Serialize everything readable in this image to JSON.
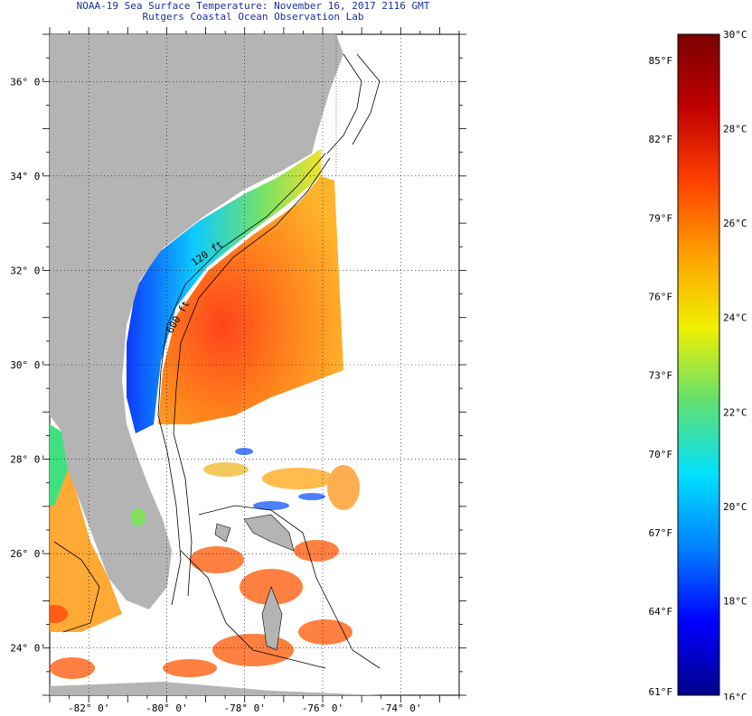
{
  "header": {
    "title": "NOAA-19 Sea Surface Temperature:  November 16, 2017 2116 GMT",
    "subtitle": "Rutgers Coastal Ocean Observation Lab"
  },
  "map": {
    "lat_labels": [
      "36° 0'",
      "34° 0'",
      "32° 0'",
      "30° 0'",
      "28° 0'",
      "26° 0'",
      "24° 0'"
    ],
    "lon_labels": [
      "-82° 0'",
      "-80° 0'",
      "-78° 0'",
      "-76° 0'",
      "-74° 0'"
    ],
    "lat_values": [
      36,
      34,
      32,
      30,
      28,
      26,
      24
    ],
    "lon_values": [
      -82,
      -80,
      -78,
      -76,
      -74
    ],
    "lat_range": [
      23,
      37
    ],
    "lon_range": [
      -83,
      -72.5
    ],
    "contour_labels": [
      "120 ft",
      "600 ft"
    ],
    "colors": {
      "land": "#b4b4b4",
      "contour": "#000000",
      "grid": "#000000"
    }
  },
  "legend": {
    "fahrenheit_labels": [
      "85°F",
      "82°F",
      "79°F",
      "76°F",
      "73°F",
      "70°F",
      "67°F",
      "64°F",
      "61°F"
    ],
    "celsius_labels": [
      "30°C",
      "28°C",
      "26°C",
      "24°C",
      "22°C",
      "20°C",
      "18°C",
      "16°C"
    ],
    "range_c": [
      16,
      30
    ],
    "colors": [
      "#00008b",
      "#0000ff",
      "#0080ff",
      "#00e0ff",
      "#60e070",
      "#f0f000",
      "#ffa000",
      "#ff4000",
      "#c00000",
      "#7a0000"
    ]
  }
}
